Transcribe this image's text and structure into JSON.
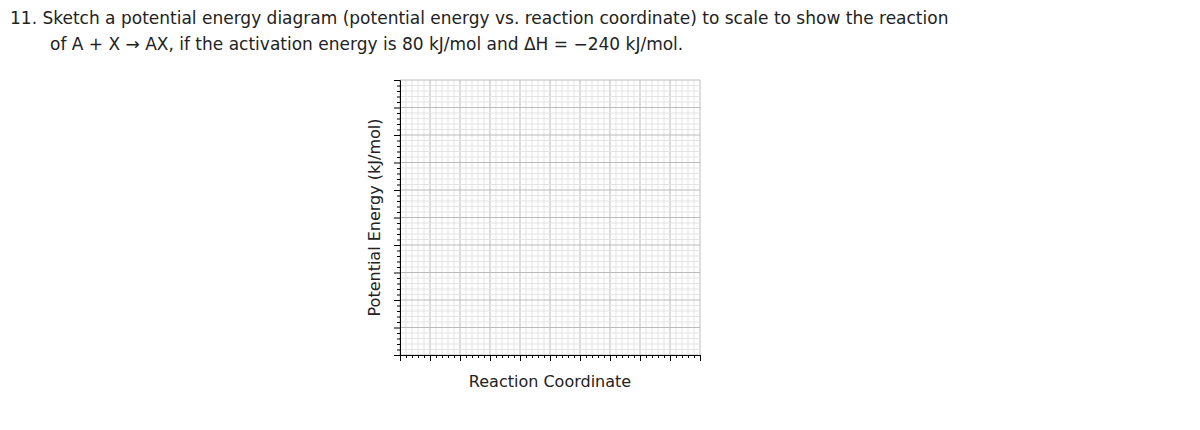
{
  "chart_data": {
    "type": "line",
    "title": "11. Sketch a potential energy diagram (potential energy vs. reaction coordinate) to scale to show the reaction",
    "subtitle": "of A + X → AX, if the activation energy is 80 kJ/mol and ΔH = −240 kJ/mol.",
    "x_label": "Reaction Coordinate",
    "y_label": "Potential Energy (kJ/mol)",
    "xlim": [
      0,
      10
    ],
    "ylim": [
      0,
      10
    ],
    "xticks": [
      0,
      0.2,
      0.4,
      0.6,
      0.8,
      1,
      1.2,
      1.4,
      1.6,
      1.8,
      2,
      2.2,
      2.4,
      2.6,
      2.8,
      3,
      3.2,
      3.4,
      3.6,
      3.8,
      4,
      4.2,
      4.4,
      4.6,
      4.8,
      5,
      5.2,
      5.4,
      5.6,
      5.8,
      6,
      6.2,
      6.4,
      6.6,
      6.8,
      7,
      7.2,
      7.4,
      7.6,
      7.8,
      8,
      8.2,
      8.4,
      8.6,
      8.8,
      9,
      9.2,
      9.4,
      9.6,
      9.8,
      10
    ],
    "yticks": [
      0,
      0.2,
      0.4,
      0.6,
      0.8,
      1,
      1.2,
      1.4,
      1.6,
      1.8,
      2,
      2.2,
      2.4,
      2.6,
      2.8,
      3,
      3.2,
      3.4,
      3.6,
      3.8,
      4,
      4.2,
      4.4,
      4.6,
      4.8,
      5,
      5.2,
      5.4,
      5.6,
      5.8,
      6,
      6.2,
      6.4,
      6.6,
      6.8,
      7,
      7.2,
      7.4,
      7.6,
      7.8,
      8,
      8.2,
      8.4,
      8.6,
      8.8,
      9,
      9.2,
      9.4,
      9.6,
      9.8,
      10
    ],
    "grid": true,
    "tick_labels": false
  }
}
